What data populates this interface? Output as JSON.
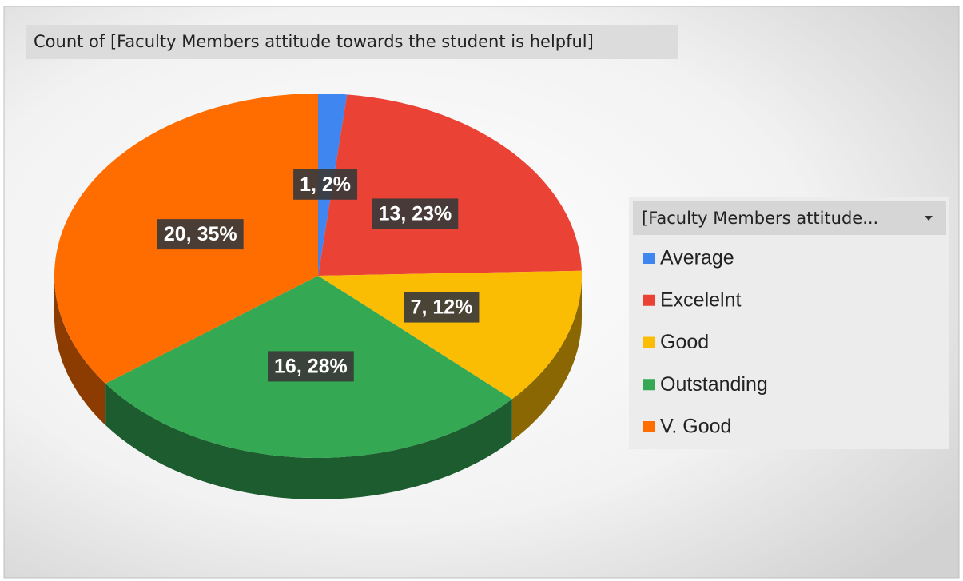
{
  "chart_data": {
    "type": "pie",
    "title": "Count of  [Faculty Members attitude towards the student is helpful]",
    "legend_title": "[Faculty Members attitude...",
    "categories": [
      "Average",
      "Excelelnt",
      "Good",
      "Outstanding",
      "V. Good"
    ],
    "values": [
      1,
      13,
      7,
      16,
      20
    ],
    "value_labels": [
      "1, 2%",
      "13, 23%",
      "7, 12%",
      "16, 28%",
      "20, 35%"
    ],
    "colors": [
      "#3f86f0",
      "#ea4335",
      "#fbbc04",
      "#34a853",
      "#ff6d01"
    ],
    "legend": "right"
  }
}
